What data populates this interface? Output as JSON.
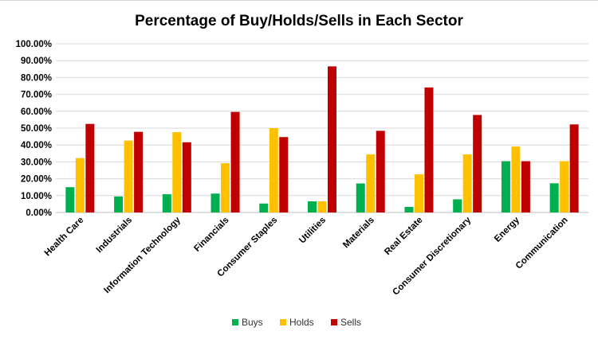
{
  "chart_data": {
    "type": "bar",
    "title": "Percentage of Buy/Holds/Sells in Each Sector",
    "categories": [
      "Health Care",
      "Industrials",
      "Information Technology",
      "Financials",
      "Consumer Staples",
      "Utilities",
      "Materials",
      "Real Estate",
      "Consumer Discretionary",
      "Energy",
      "Communication"
    ],
    "series": [
      {
        "name": "Buys",
        "color": "#00b050",
        "values": [
          15.0,
          9.5,
          10.8,
          11.2,
          5.3,
          6.6,
          17.2,
          3.3,
          7.8,
          30.4,
          17.3
        ]
      },
      {
        "name": "Holds",
        "color": "#ffc000",
        "values": [
          32.2,
          42.6,
          47.6,
          29.2,
          50.0,
          6.6,
          34.4,
          22.6,
          34.4,
          39.1,
          30.4
        ]
      },
      {
        "name": "Sells",
        "color": "#c00000",
        "values": [
          52.5,
          47.8,
          41.6,
          59.6,
          44.7,
          86.6,
          48.4,
          74.1,
          57.8,
          30.4,
          52.2
        ]
      }
    ],
    "yticks": [
      "0.00%",
      "10.00%",
      "20.00%",
      "30.00%",
      "40.00%",
      "50.00%",
      "60.00%",
      "70.00%",
      "80.00%",
      "90.00%",
      "100.00%"
    ],
    "ylim": [
      0,
      100
    ],
    "grid": true,
    "legend": "bottom"
  }
}
